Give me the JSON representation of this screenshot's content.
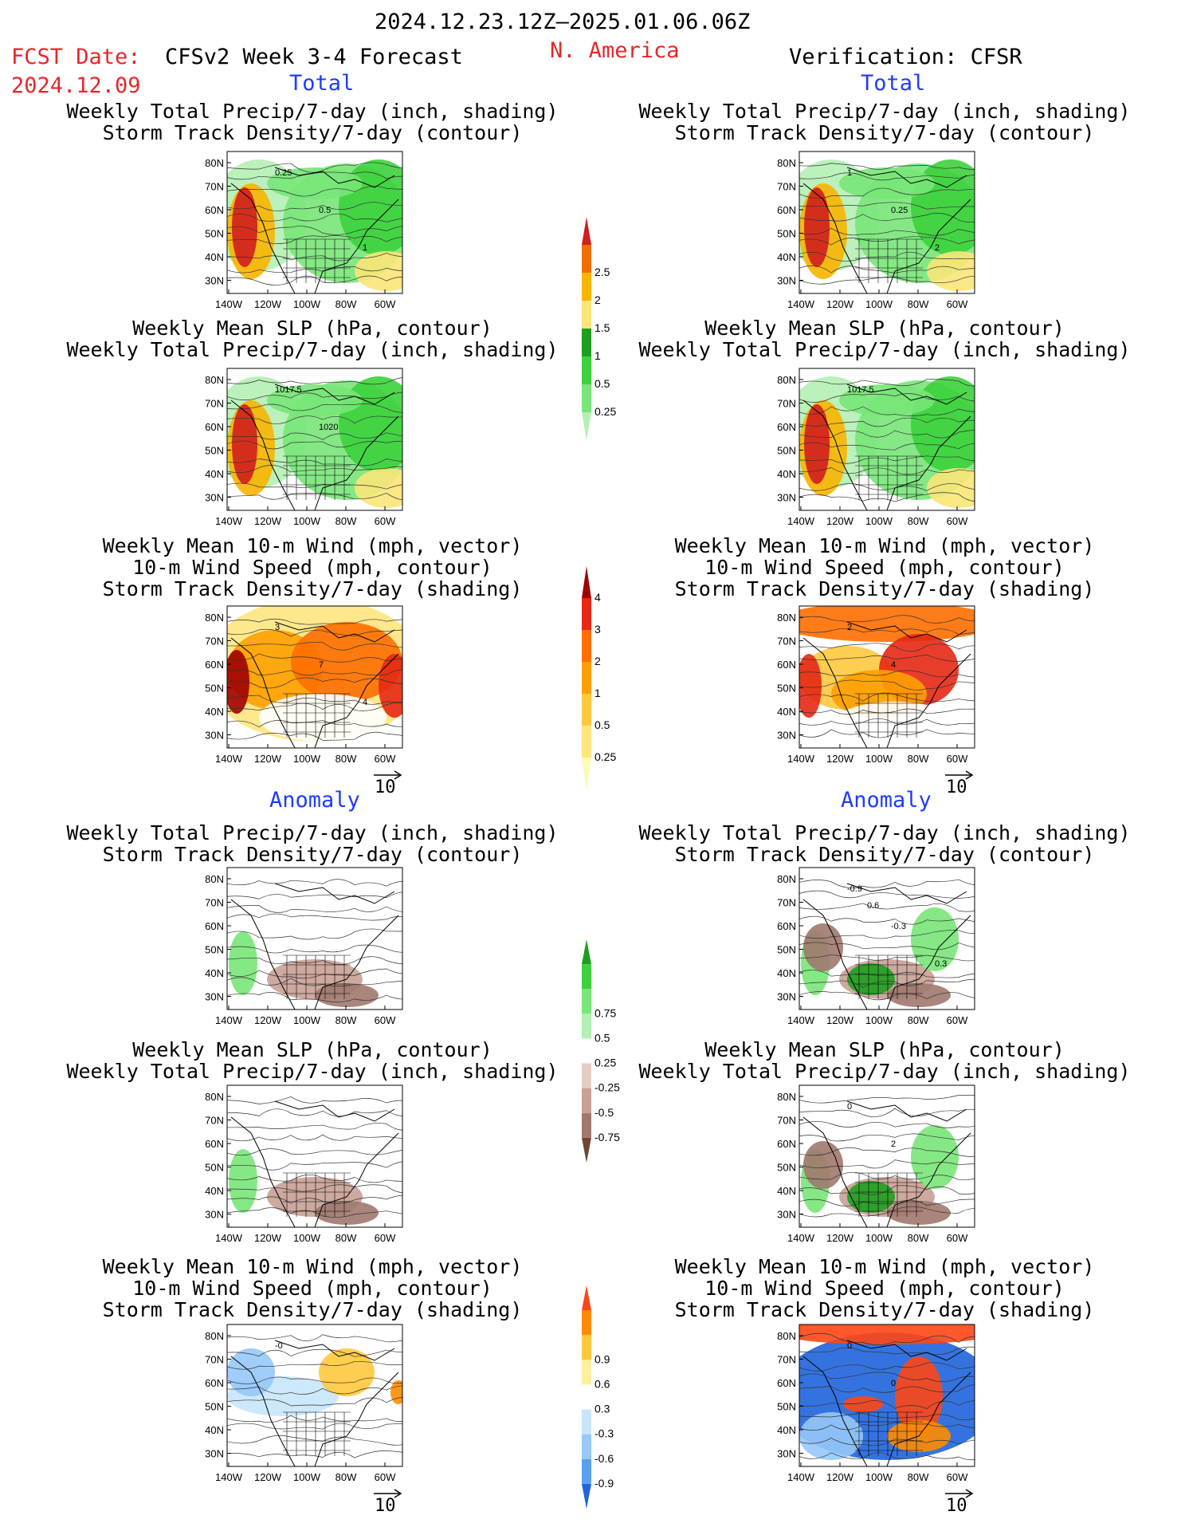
{
  "header": {
    "date_range": "2024.12.23.12Z–2025.01.06.06Z",
    "fcst_label": "FCST Date:",
    "fcst_date": "2024.12.09",
    "model": "CFSv2 Week 3-4 Forecast",
    "region": "N. America",
    "verification": "Verification: CFSR",
    "total_left": "Total",
    "total_right": "Total",
    "anomaly_left": "Anomaly",
    "anomaly_right": "Anomaly"
  },
  "colors": {
    "text_red": "#e8262a",
    "text_blue": "#1e3cff",
    "land_outline": "#000000"
  },
  "panel_titles": {
    "precip_track": [
      "Weekly Total Precip/7-day (inch, shading)",
      "Storm Track Density/7-day (contour)"
    ],
    "slp_precip": [
      "Weekly Mean SLP (hPa, contour)",
      "Weekly Total Precip/7-day (inch, shading)"
    ],
    "wind_track": [
      "Weekly Mean 10-m Wind (mph, vector)",
      "10-m Wind Speed (mph, contour)",
      "Storm Track Density/7-day (shading)"
    ]
  },
  "vector_reference": "10",
  "chart_data": [
    {
      "type": "heatmap",
      "section": "total",
      "xlabel": "",
      "ylabel": "",
      "x_ticks": [
        "140W",
        "120W",
        "100W",
        "80W",
        "60W"
      ],
      "y_ticks": [
        "80N",
        "70N",
        "60N",
        "50N",
        "40N",
        "30N"
      ],
      "colorbars": [
        {
          "levels": [
            "0.25",
            "0.5",
            "1",
            "1.5",
            "2",
            "2.5"
          ],
          "colors": [
            "#b4f0b4",
            "#78e678",
            "#3cd23c",
            "#1e9e1e",
            "#fae678",
            "#fab400",
            "#f06e00",
            "#d21e1e"
          ]
        },
        {
          "levels": [
            "0.25",
            "0.5",
            "1",
            "2",
            "3",
            "4"
          ],
          "colors": [
            "#fffab4",
            "#ffe680",
            "#ffc83c",
            "#ffa000",
            "#ff6e00",
            "#e62814",
            "#a00000"
          ]
        }
      ],
      "panels": [
        {
          "id": "L1",
          "title": "precip_track",
          "contour_labels": [
            "0.25",
            "0.5",
            "1"
          ]
        },
        {
          "id": "R1",
          "title": "precip_track",
          "contour_labels": [
            "1",
            "0.25",
            "2"
          ]
        },
        {
          "id": "L2",
          "title": "slp_precip",
          "contour_labels": [
            "1017.5",
            "1020"
          ]
        },
        {
          "id": "R2",
          "title": "slp_precip",
          "contour_labels": [
            "1017.5"
          ]
        },
        {
          "id": "L3",
          "title": "wind_track",
          "contour_labels": [
            "3",
            "7",
            "4"
          ]
        },
        {
          "id": "R3",
          "title": "wind_track",
          "contour_labels": [
            "2",
            "4"
          ]
        }
      ]
    },
    {
      "type": "heatmap",
      "section": "anomaly",
      "xlabel": "",
      "ylabel": "",
      "x_ticks": [
        "140W",
        "120W",
        "100W",
        "80W",
        "60W"
      ],
      "y_ticks": [
        "80N",
        "70N",
        "60N",
        "50N",
        "40N",
        "30N"
      ],
      "colorbars": [
        {
          "levels": [
            "-0.75",
            "-0.5",
            "-0.25",
            "0.25",
            "0.5",
            "0.75"
          ],
          "colors": [
            "#6e4632",
            "#a0786e",
            "#c8a096",
            "#e6ccc4",
            "#ffffff",
            "#b4f0b4",
            "#78e678",
            "#3cd23c",
            "#1e9e1e"
          ]
        },
        {
          "levels": [
            "-0.9",
            "-0.6",
            "-0.3",
            "0.3",
            "0.6",
            "0.9"
          ],
          "colors": [
            "#1e64dc",
            "#5aa0f0",
            "#96c8f8",
            "#c8e6fa",
            "#ffffff",
            "#fff0a0",
            "#ffc83c",
            "#ff8c00",
            "#ff4614"
          ]
        }
      ],
      "panels": [
        {
          "id": "L4",
          "title": "precip_track",
          "contour_labels": []
        },
        {
          "id": "R4",
          "title": "precip_track",
          "contour_labels": [
            "-0.9",
            "-0.3",
            "0.3",
            "0.6"
          ]
        },
        {
          "id": "L5",
          "title": "slp_precip",
          "contour_labels": []
        },
        {
          "id": "R5",
          "title": "slp_precip",
          "contour_labels": [
            "0",
            "2"
          ]
        },
        {
          "id": "L6",
          "title": "wind_track",
          "contour_labels": [
            "-0"
          ]
        },
        {
          "id": "R6",
          "title": "wind_track",
          "contour_labels": [
            "0",
            "0"
          ]
        }
      ]
    }
  ]
}
